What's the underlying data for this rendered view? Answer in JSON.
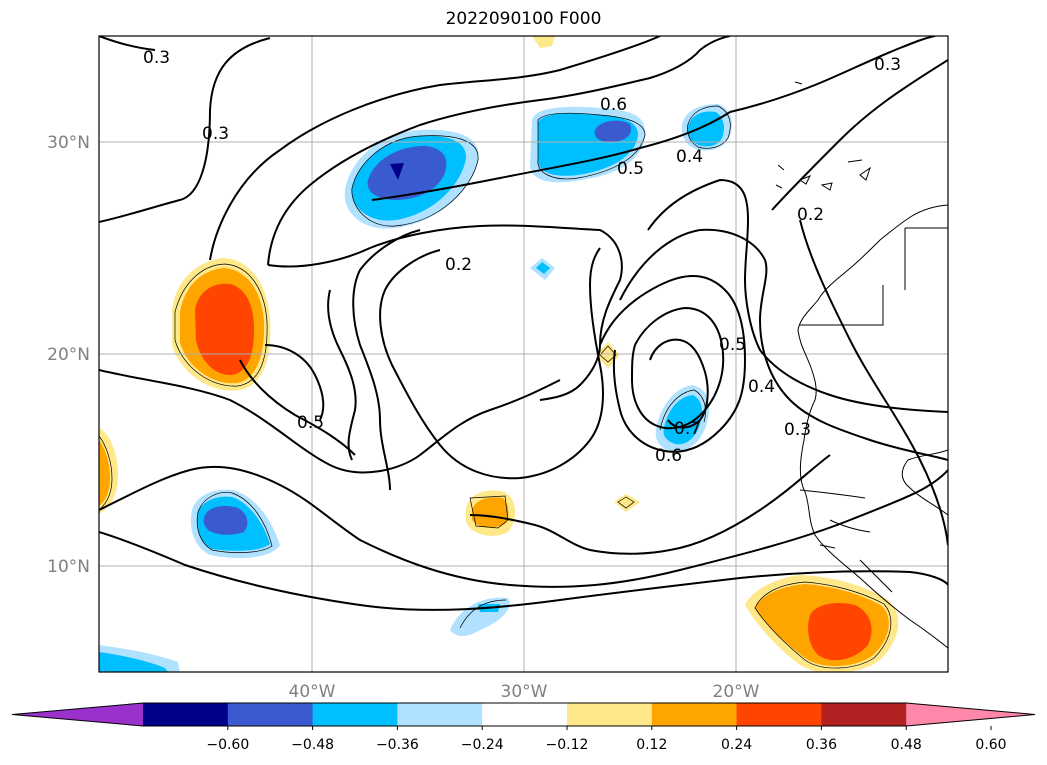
{
  "title": "2022090100 F000",
  "lat_labels": [
    "30°N",
    "20°N",
    "10°N"
  ],
  "lon_labels": [
    "40°W",
    "30°W",
    "20°W"
  ],
  "contour_labels": [
    "0.3",
    "0.3",
    "0.3",
    "0.6",
    "0.5",
    "0.4",
    "0.2",
    "0.2",
    "0.5",
    "0.5",
    "0.4",
    "0.3",
    "0.7",
    "0.6"
  ],
  "colorbar": {
    "labels": [
      "−0.60",
      "−0.48",
      "−0.36",
      "−0.24",
      "−0.12",
      "0.12",
      "0.24",
      "0.36",
      "0.48",
      "0.60"
    ],
    "colors": [
      "#9a31cd",
      "#00008b",
      "#3a5bd0",
      "#00bfff",
      "#b0e2ff",
      "#ffffff",
      "#ffe889",
      "#ffa500",
      "#ff4500",
      "#b22222",
      "#ff87a9"
    ]
  },
  "colors": {
    "deep_blue": "#00008b",
    "royal_blue": "#3a5bd0",
    "sky_blue": "#00bfff",
    "light_blue": "#b0e2ff",
    "light_yellow": "#ffe889",
    "orange": "#ffa500",
    "orange_red": "#ff4500"
  }
}
